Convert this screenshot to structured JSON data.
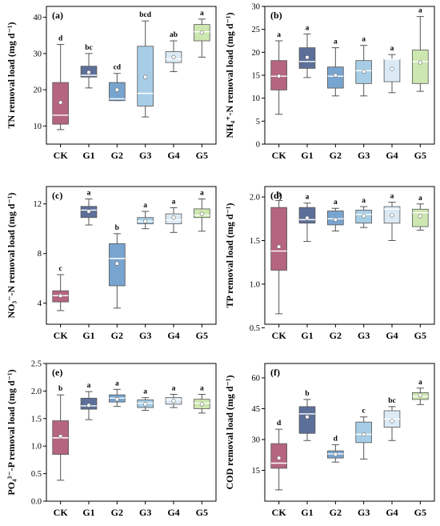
{
  "colors": {
    "CK": "#b5657f",
    "G1": "#5c6f98",
    "G2": "#78a5cf",
    "G3": "#a7cde6",
    "G4": "#dbeaf5",
    "G5": "#cde7b0",
    "whisker": "#555555",
    "axis": "#000000",
    "median": "#ffffff",
    "mean_marker_fill": "#ffffff"
  },
  "chart_data": [
    {
      "type": "box",
      "panel_label": "(a)",
      "ylabel": "TN removal load (mg d⁻¹)",
      "categories": [
        "CK",
        "G1",
        "G2",
        "G3",
        "G4",
        "G5"
      ],
      "ylim": [
        5,
        43
      ],
      "yticks": [
        10,
        20,
        30,
        40
      ],
      "boxes": [
        {
          "name": "CK",
          "min": 9,
          "q1": 10.5,
          "median": 13,
          "q3": 22,
          "max": 32.5,
          "mean": 16.5,
          "sig": "d"
        },
        {
          "name": "G1",
          "min": 20.5,
          "q1": 23.5,
          "median": 24,
          "q3": 26.5,
          "max": 30,
          "mean": 24.8,
          "sig": "bc"
        },
        {
          "name": "G2",
          "min": 17,
          "q1": 17,
          "median": 17.5,
          "q3": 22,
          "max": 24.5,
          "mean": 20,
          "sig": "cd"
        },
        {
          "name": "G3",
          "min": 12.5,
          "q1": 15.5,
          "median": 19,
          "q3": 32,
          "max": 39,
          "mean": 23.5,
          "sig": "bcd"
        },
        {
          "name": "G4",
          "min": 25,
          "q1": 27.5,
          "median": 28.5,
          "q3": 30.5,
          "max": 33.5,
          "mean": 29,
          "sig": "ab"
        },
        {
          "name": "G5",
          "min": 29,
          "q1": 33.5,
          "median": 36,
          "q3": 38,
          "max": 39.5,
          "mean": 35.8,
          "sig": "a"
        }
      ]
    },
    {
      "type": "box",
      "panel_label": "(b)",
      "ylabel": "NH₄⁺-N removal load (mg d⁻¹)",
      "categories": [
        "CK",
        "G1",
        "G2",
        "G3",
        "G4",
        "G5"
      ],
      "ylim": [
        0,
        30
      ],
      "yticks": [
        0,
        5,
        10,
        15,
        20,
        25,
        30
      ],
      "boxes": [
        {
          "name": "CK",
          "min": 6.5,
          "q1": 11.8,
          "median": 14.8,
          "q3": 18.2,
          "max": 22.5,
          "mean": 14.8,
          "sig": "a"
        },
        {
          "name": "G1",
          "min": 14.5,
          "q1": 16.5,
          "median": 18,
          "q3": 21,
          "max": 24,
          "mean": 18.9,
          "sig": "a"
        },
        {
          "name": "G2",
          "min": 10.5,
          "q1": 12.2,
          "median": 14.8,
          "q3": 16.8,
          "max": 21,
          "mean": 15,
          "sig": "a"
        },
        {
          "name": "G3",
          "min": 10.5,
          "q1": 13.2,
          "median": 16,
          "q3": 18.2,
          "max": 21.5,
          "mean": 15.8,
          "sig": "a"
        },
        {
          "name": "G4",
          "min": 11.2,
          "q1": 13.6,
          "median": 18.5,
          "q3": 18.5,
          "max": 19.5,
          "mean": 16.4,
          "sig": "a"
        },
        {
          "name": "G5",
          "min": 11.5,
          "q1": 13.2,
          "median": 18,
          "q3": 20.5,
          "max": 27.8,
          "mean": 17.8,
          "sig": "a"
        }
      ]
    },
    {
      "type": "box",
      "panel_label": "(c)",
      "ylabel": "NO₃⁻-N removal load (mg d⁻¹)",
      "categories": [
        "CK",
        "G1",
        "G2",
        "G3",
        "G4",
        "G5"
      ],
      "ylim": [
        2.3,
        13.4
      ],
      "yticks": [
        4,
        8,
        12
      ],
      "boxes": [
        {
          "name": "CK",
          "min": 3.4,
          "q1": 4.1,
          "median": 4.6,
          "q3": 5,
          "max": 6.3,
          "mean": 4.6,
          "sig": "c"
        },
        {
          "name": "G1",
          "min": 10.3,
          "q1": 10.9,
          "median": 11.5,
          "q3": 11.8,
          "max": 12.4,
          "mean": 11.4,
          "sig": "a"
        },
        {
          "name": "G2",
          "min": 3.6,
          "q1": 5.4,
          "median": 7.6,
          "q3": 8.8,
          "max": 9.6,
          "mean": 7.2,
          "sig": "b"
        },
        {
          "name": "G3",
          "min": 10,
          "q1": 10.4,
          "median": 10.6,
          "q3": 10.9,
          "max": 11.4,
          "mean": 10.6,
          "sig": "a"
        },
        {
          "name": "G4",
          "min": 9.7,
          "q1": 10.4,
          "median": 10.7,
          "q3": 11.2,
          "max": 11.7,
          "mean": 10.9,
          "sig": "a"
        },
        {
          "name": "G5",
          "min": 9.8,
          "q1": 10.9,
          "median": 11.1,
          "q3": 11.6,
          "max": 12.4,
          "mean": 11.2,
          "sig": "a"
        }
      ]
    },
    {
      "type": "box",
      "panel_label": "(d)",
      "ylabel": "TP removal load (mg d⁻¹)",
      "categories": [
        "CK",
        "G1",
        "G2",
        "G3",
        "G4",
        "G5"
      ],
      "ylim": [
        0.54,
        2.12
      ],
      "yticks": [
        0.5,
        1.0,
        1.5,
        2.0
      ],
      "ytick_labels": [
        "0.5",
        "1.0",
        "1.5",
        "2.0"
      ],
      "boxes": [
        {
          "name": "CK",
          "min": 0.66,
          "q1": 1.16,
          "median": 1.38,
          "q3": 1.88,
          "max": 1.96,
          "mean": 1.43,
          "sig": "b"
        },
        {
          "name": "G1",
          "min": 1.49,
          "q1": 1.7,
          "median": 1.74,
          "q3": 1.88,
          "max": 1.93,
          "mean": 1.76,
          "sig": "a"
        },
        {
          "name": "G2",
          "min": 1.61,
          "q1": 1.68,
          "median": 1.75,
          "q3": 1.84,
          "max": 1.87,
          "mean": 1.74,
          "sig": "a"
        },
        {
          "name": "G3",
          "min": 1.65,
          "q1": 1.7,
          "median": 1.8,
          "q3": 1.85,
          "max": 1.89,
          "mean": 1.78,
          "sig": "a"
        },
        {
          "name": "G4",
          "min": 1.5,
          "q1": 1.7,
          "median": 1.86,
          "q3": 1.89,
          "max": 1.94,
          "mean": 1.79,
          "sig": "a"
        },
        {
          "name": "G5",
          "min": 1.62,
          "q1": 1.66,
          "median": 1.82,
          "q3": 1.86,
          "max": 1.92,
          "mean": 1.78,
          "sig": "a"
        }
      ]
    },
    {
      "type": "box",
      "panel_label": "(e)",
      "ylabel": "PO₄³⁻-P removal load (mg d⁻¹)",
      "categories": [
        "CK",
        "G1",
        "G2",
        "G3",
        "G4",
        "G5"
      ],
      "ylim": [
        0,
        2.5
      ],
      "yticks": [
        0.0,
        0.5,
        1.0,
        1.5,
        2.0,
        2.5
      ],
      "ytick_labels": [
        "0.0",
        "0.5",
        "1.0",
        "1.5",
        "2.0",
        "2.5"
      ],
      "boxes": [
        {
          "name": "CK",
          "min": 0.38,
          "q1": 0.85,
          "median": 1.15,
          "q3": 1.46,
          "max": 1.93,
          "mean": 1.18,
          "sig": "b"
        },
        {
          "name": "G1",
          "min": 1.48,
          "q1": 1.67,
          "median": 1.73,
          "q3": 1.87,
          "max": 1.99,
          "mean": 1.74,
          "sig": "a"
        },
        {
          "name": "G2",
          "min": 1.72,
          "q1": 1.8,
          "median": 1.87,
          "q3": 1.93,
          "max": 2.03,
          "mean": 1.85,
          "sig": "a"
        },
        {
          "name": "G3",
          "min": 1.65,
          "q1": 1.7,
          "median": 1.78,
          "q3": 1.84,
          "max": 1.88,
          "mean": 1.76,
          "sig": "a"
        },
        {
          "name": "G4",
          "min": 1.7,
          "q1": 1.76,
          "median": 1.84,
          "q3": 1.88,
          "max": 1.94,
          "mean": 1.82,
          "sig": "a"
        },
        {
          "name": "G5",
          "min": 1.6,
          "q1": 1.68,
          "median": 1.78,
          "q3": 1.85,
          "max": 1.94,
          "mean": 1.76,
          "sig": "a"
        }
      ]
    },
    {
      "type": "box",
      "panel_label": "(f)",
      "ylabel": "COD removal load (mg d⁻¹)",
      "categories": [
        "CK",
        "G1",
        "G2",
        "G3",
        "G4",
        "G5"
      ],
      "ylim": [
        0,
        67
      ],
      "yticks": [
        15,
        30,
        45,
        60
      ],
      "boxes": [
        {
          "name": "CK",
          "min": 5.5,
          "q1": 16,
          "median": 18.5,
          "q3": 28,
          "max": 35,
          "mean": 21,
          "sig": "d"
        },
        {
          "name": "G1",
          "min": 29.5,
          "q1": 33,
          "median": 42.5,
          "q3": 46,
          "max": 49.5,
          "mean": 41,
          "sig": "b"
        },
        {
          "name": "G2",
          "min": 19,
          "q1": 21,
          "median": 23,
          "q3": 24.5,
          "max": 27.5,
          "mean": 22.8,
          "sig": "d"
        },
        {
          "name": "G3",
          "min": 20.5,
          "q1": 28.5,
          "median": 32.5,
          "q3": 38.5,
          "max": 41,
          "mean": 32.5,
          "sig": "c"
        },
        {
          "name": "G4",
          "min": 29.5,
          "q1": 36,
          "median": 40,
          "q3": 44,
          "max": 46,
          "mean": 39,
          "sig": "bc"
        },
        {
          "name": "G5",
          "min": 47,
          "q1": 49.5,
          "median": 51,
          "q3": 52.8,
          "max": 55,
          "mean": 51.5,
          "sig": "a"
        }
      ]
    }
  ]
}
